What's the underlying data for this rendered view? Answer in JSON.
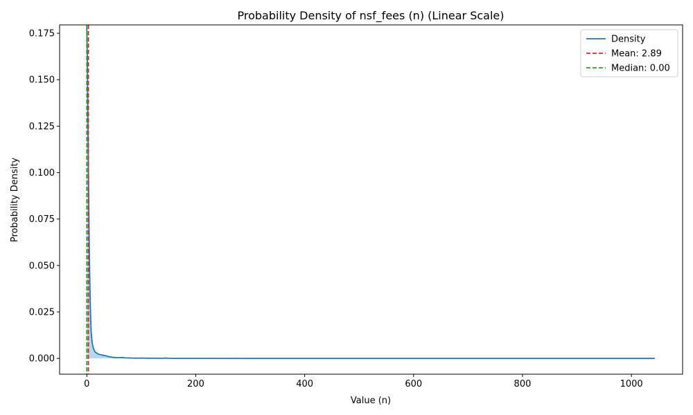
{
  "chart_data": {
    "type": "line",
    "title": "Probability Density of nsf_fees (n) (Linear Scale)",
    "xlabel": "Value (n)",
    "ylabel": "Probability Density",
    "xlim": [
      -50,
      1094
    ],
    "ylim": [
      -0.0085,
      0.1795
    ],
    "xticks": [
      0,
      200,
      400,
      600,
      800,
      1000
    ],
    "yticks": [
      0.0,
      0.025,
      0.05,
      0.075,
      0.1,
      0.125,
      0.15,
      0.175
    ],
    "ytick_labels": [
      "0.000",
      "0.025",
      "0.050",
      "0.075",
      "0.100",
      "0.125",
      "0.150",
      "0.175"
    ],
    "grid": false,
    "legend_position": "top-right",
    "series": [
      {
        "name": "Density",
        "color": "#1f77b4",
        "fill": true,
        "x": [
          0,
          1,
          2,
          3,
          4,
          5,
          6,
          7,
          8,
          10,
          12,
          15,
          20,
          25,
          30,
          35,
          40,
          45,
          50,
          55,
          60,
          65,
          70,
          80,
          90,
          100,
          110,
          120,
          130,
          140,
          145,
          150,
          160,
          200,
          300,
          400,
          500,
          600,
          700,
          800,
          900,
          1000,
          1043
        ],
        "y": [
          0.178,
          0.16,
          0.13,
          0.1,
          0.072,
          0.05,
          0.034,
          0.022,
          0.014,
          0.008,
          0.0055,
          0.0035,
          0.0025,
          0.002,
          0.0017,
          0.0014,
          0.001,
          0.0007,
          0.0005,
          0.0004,
          0.0004,
          0.0005,
          0.0003,
          0.0002,
          0.0001,
          0.0002,
          0.0001,
          0.0001,
          5e-05,
          5e-05,
          0.0002,
          5e-05,
          2e-05,
          1e-05,
          0,
          0,
          0,
          0,
          0,
          0,
          0,
          0,
          0
        ]
      }
    ],
    "reference_lines": [
      {
        "name": "Mean: 2.89",
        "value": 2.89,
        "color": "#d62728",
        "style": "dashed"
      },
      {
        "name": "Median: 0.00",
        "value": 0.0,
        "color": "#2ca02c",
        "style": "dashed"
      }
    ]
  }
}
